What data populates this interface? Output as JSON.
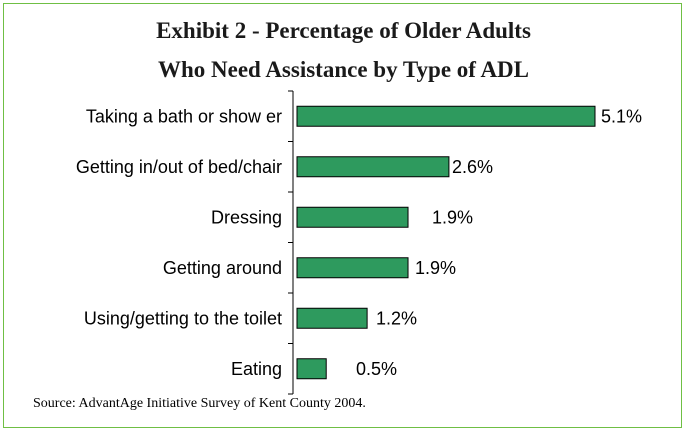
{
  "title_line1": "Exhibit 2 - Percentage of Older Adults",
  "title_line2": "Who Need Assistance by Type of ADL",
  "source": "Source:  AdvantAge Initiative Survey of Kent County 2004.",
  "colors": {
    "bar": "#2e9a5e",
    "frame": "#6fbf44",
    "axis": "#000000"
  },
  "chart_data": {
    "type": "bar",
    "orientation": "horizontal",
    "categories": [
      "Taking a bath or show er",
      "Getting in/out of bed/chair",
      "Dressing",
      "Getting around",
      "Using/getting to the toilet",
      "Eating"
    ],
    "values": [
      5.1,
      2.6,
      1.9,
      1.9,
      1.2,
      0.5
    ],
    "value_labels": [
      "5.1%",
      "2.6%",
      "1.9%",
      "1.9%",
      "1.2%",
      "0.5%"
    ],
    "unit": "%",
    "grid": false,
    "legend": "none"
  }
}
